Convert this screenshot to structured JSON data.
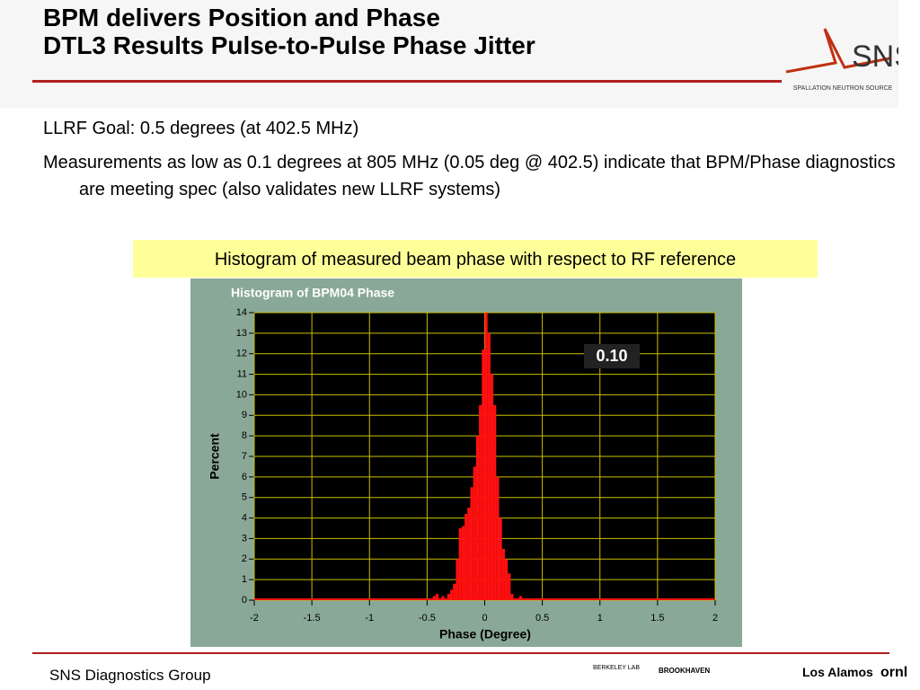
{
  "header": {
    "title_lines": [
      "BPM delivers Position and Phase",
      "DTL3 Results Pulse-to-Pulse Phase Jitter"
    ],
    "logo": {
      "name": "SNS",
      "subtitle": "SPALLATION NEUTRON SOURCE"
    }
  },
  "bullets": [
    "LLRF Goal: 0.5 degrees (at 402.5 MHz)",
    "Measurements as low as 0.1 degrees at 805 MHz (0.05 deg @ 402.5) indicate that BPM/Phase diagnostics are meeting spec (also validates new LLRF systems)"
  ],
  "caption": "Histogram of measured beam phase with respect to RF reference",
  "chart_data": {
    "type": "histogram",
    "title": "Histogram of BPM04 Phase",
    "x_label": "Phase (Degree)",
    "y_label": "Percent",
    "annotation": "0.10",
    "color": "#ff1010",
    "grid": true,
    "bins": [
      -0.45,
      -0.425,
      -0.4,
      -0.375,
      -0.35,
      -0.325,
      -0.3,
      -0.275,
      -0.25,
      -0.225,
      -0.2,
      -0.175,
      -0.15,
      -0.125,
      -0.1,
      -0.075,
      -0.05,
      -0.025,
      0,
      0.025,
      0.05,
      0.075,
      0.1,
      0.125,
      0.15,
      0.175,
      0.2,
      0.225,
      0.25,
      0.275,
      0.3,
      0.325,
      0.35
    ],
    "values": [
      0.2,
      0.3,
      0,
      0.2,
      0,
      0.3,
      0.5,
      0.8,
      2,
      3.5,
      3.6,
      4.2,
      4.5,
      5.5,
      6.5,
      8,
      9.5,
      12.2,
      14,
      13,
      11,
      9.5,
      6,
      4,
      2.5,
      2,
      1.3,
      0.3,
      0,
      0,
      0.2,
      0
    ],
    "xlim": [
      -2,
      2
    ],
    "xticks": [
      -2,
      -1.5,
      -1,
      -0.5,
      0,
      0.5,
      1,
      1.5,
      2
    ],
    "ylim": [
      0,
      14
    ],
    "yticks": [
      0,
      1,
      2,
      3,
      4,
      5,
      6,
      7,
      8,
      9,
      10,
      11,
      12,
      13,
      14
    ]
  },
  "footer": {
    "text": "SNS Diagnostics Group",
    "logos": [
      "BERKELEY LAB",
      "BROOKHAVEN",
      "Los Alamos",
      "ornl"
    ]
  }
}
